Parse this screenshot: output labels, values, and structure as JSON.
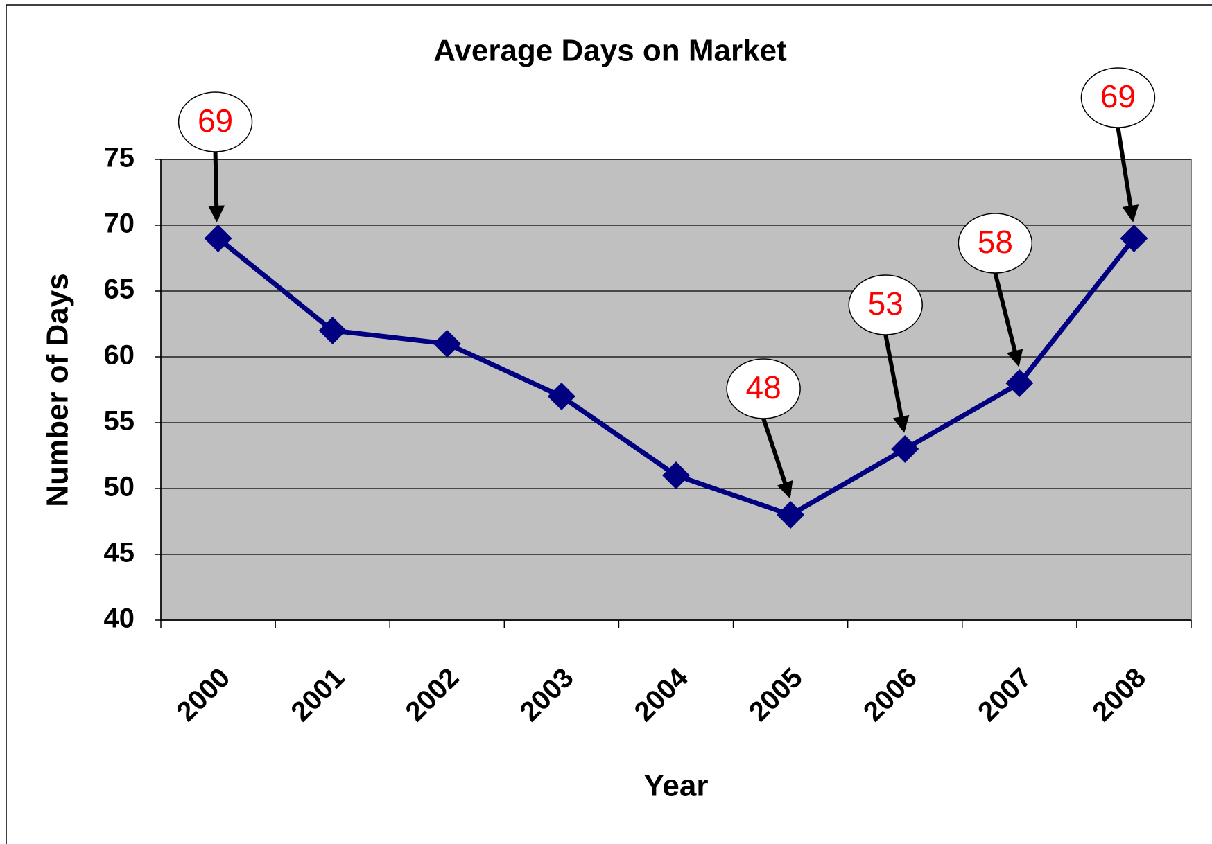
{
  "chart_data": {
    "type": "line",
    "title": "Average Days on Market",
    "x_label": "Year",
    "y_label": "Number of Days",
    "categories": [
      "2000",
      "2001",
      "2002",
      "2003",
      "2004",
      "2005",
      "2006",
      "2007",
      "2008"
    ],
    "values": [
      69,
      62,
      61,
      57,
      51,
      48,
      53,
      58,
      69
    ],
    "value_labels": [
      "69",
      null,
      null,
      null,
      null,
      "48",
      "53",
      "58",
      "69"
    ],
    "color": "#000080",
    "label_color": "#ff0000",
    "plot_background": "#c0c0c0",
    "ylim": [
      40,
      75
    ],
    "yticks": [
      40,
      45,
      50,
      55,
      60,
      65,
      70,
      75
    ],
    "grid": true
  }
}
